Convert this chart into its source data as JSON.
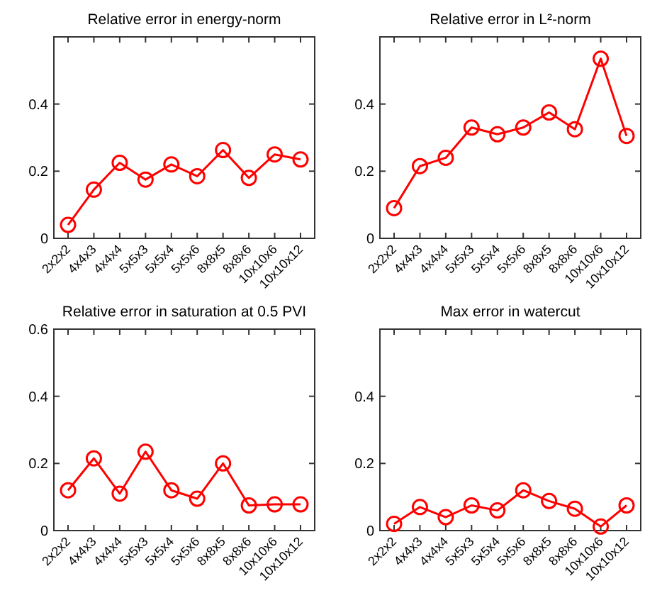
{
  "chart_data": [
    {
      "type": "line",
      "title": "Relative error in energy-norm",
      "categories": [
        "2x2x2",
        "4x4x3",
        "4x4x4",
        "5x5x3",
        "5x5x4",
        "5x5x6",
        "8x8x5",
        "8x8x6",
        "10x10x6",
        "10x10x12"
      ],
      "values": [
        0.04,
        0.145,
        0.225,
        0.175,
        0.22,
        0.185,
        0.263,
        0.18,
        0.25,
        0.235
      ],
      "color": "#ff0000",
      "marker": "circle",
      "ylim": [
        0,
        0.6
      ],
      "yticks": [
        0,
        0.2,
        0.4
      ]
    },
    {
      "type": "line",
      "title": "Relative error in L²-norm",
      "categories": [
        "2x2x2",
        "4x4x3",
        "4x4x4",
        "5x5x3",
        "5x5x4",
        "5x5x6",
        "8x8x5",
        "8x8x6",
        "10x10x6",
        "10x10x12"
      ],
      "values": [
        0.09,
        0.215,
        0.24,
        0.33,
        0.31,
        0.33,
        0.375,
        0.325,
        0.535,
        0.305
      ],
      "color": "#ff0000",
      "marker": "circle",
      "ylim": [
        0,
        0.6
      ],
      "yticks": [
        0,
        0.2,
        0.4
      ]
    },
    {
      "type": "line",
      "title": "Relative error in saturation at 0.5 PVI",
      "categories": [
        "2x2x2",
        "4x4x3",
        "4x4x4",
        "5x5x3",
        "5x5x4",
        "5x5x6",
        "8x8x5",
        "8x8x6",
        "10x10x6",
        "10x10x12"
      ],
      "values": [
        0.12,
        0.215,
        0.11,
        0.235,
        0.12,
        0.095,
        0.2,
        0.075,
        0.078,
        0.078
      ],
      "color": "#ff0000",
      "marker": "circle",
      "ylim": [
        0,
        0.6
      ],
      "yticks": [
        0,
        0.2,
        0.4,
        0.6
      ]
    },
    {
      "type": "line",
      "title": "Max error in watercut",
      "categories": [
        "2x2x2",
        "4x4x3",
        "4x4x4",
        "5x5x3",
        "5x5x4",
        "5x5x6",
        "8x8x5",
        "8x8x6",
        "10x10x6",
        "10x10x12"
      ],
      "values": [
        0.02,
        0.07,
        0.04,
        0.075,
        0.06,
        0.12,
        0.088,
        0.065,
        0.012,
        0.075
      ],
      "color": "#ff0000",
      "marker": "circle",
      "ylim": [
        0,
        0.6
      ],
      "yticks": [
        0,
        0.2,
        0.4
      ]
    }
  ]
}
